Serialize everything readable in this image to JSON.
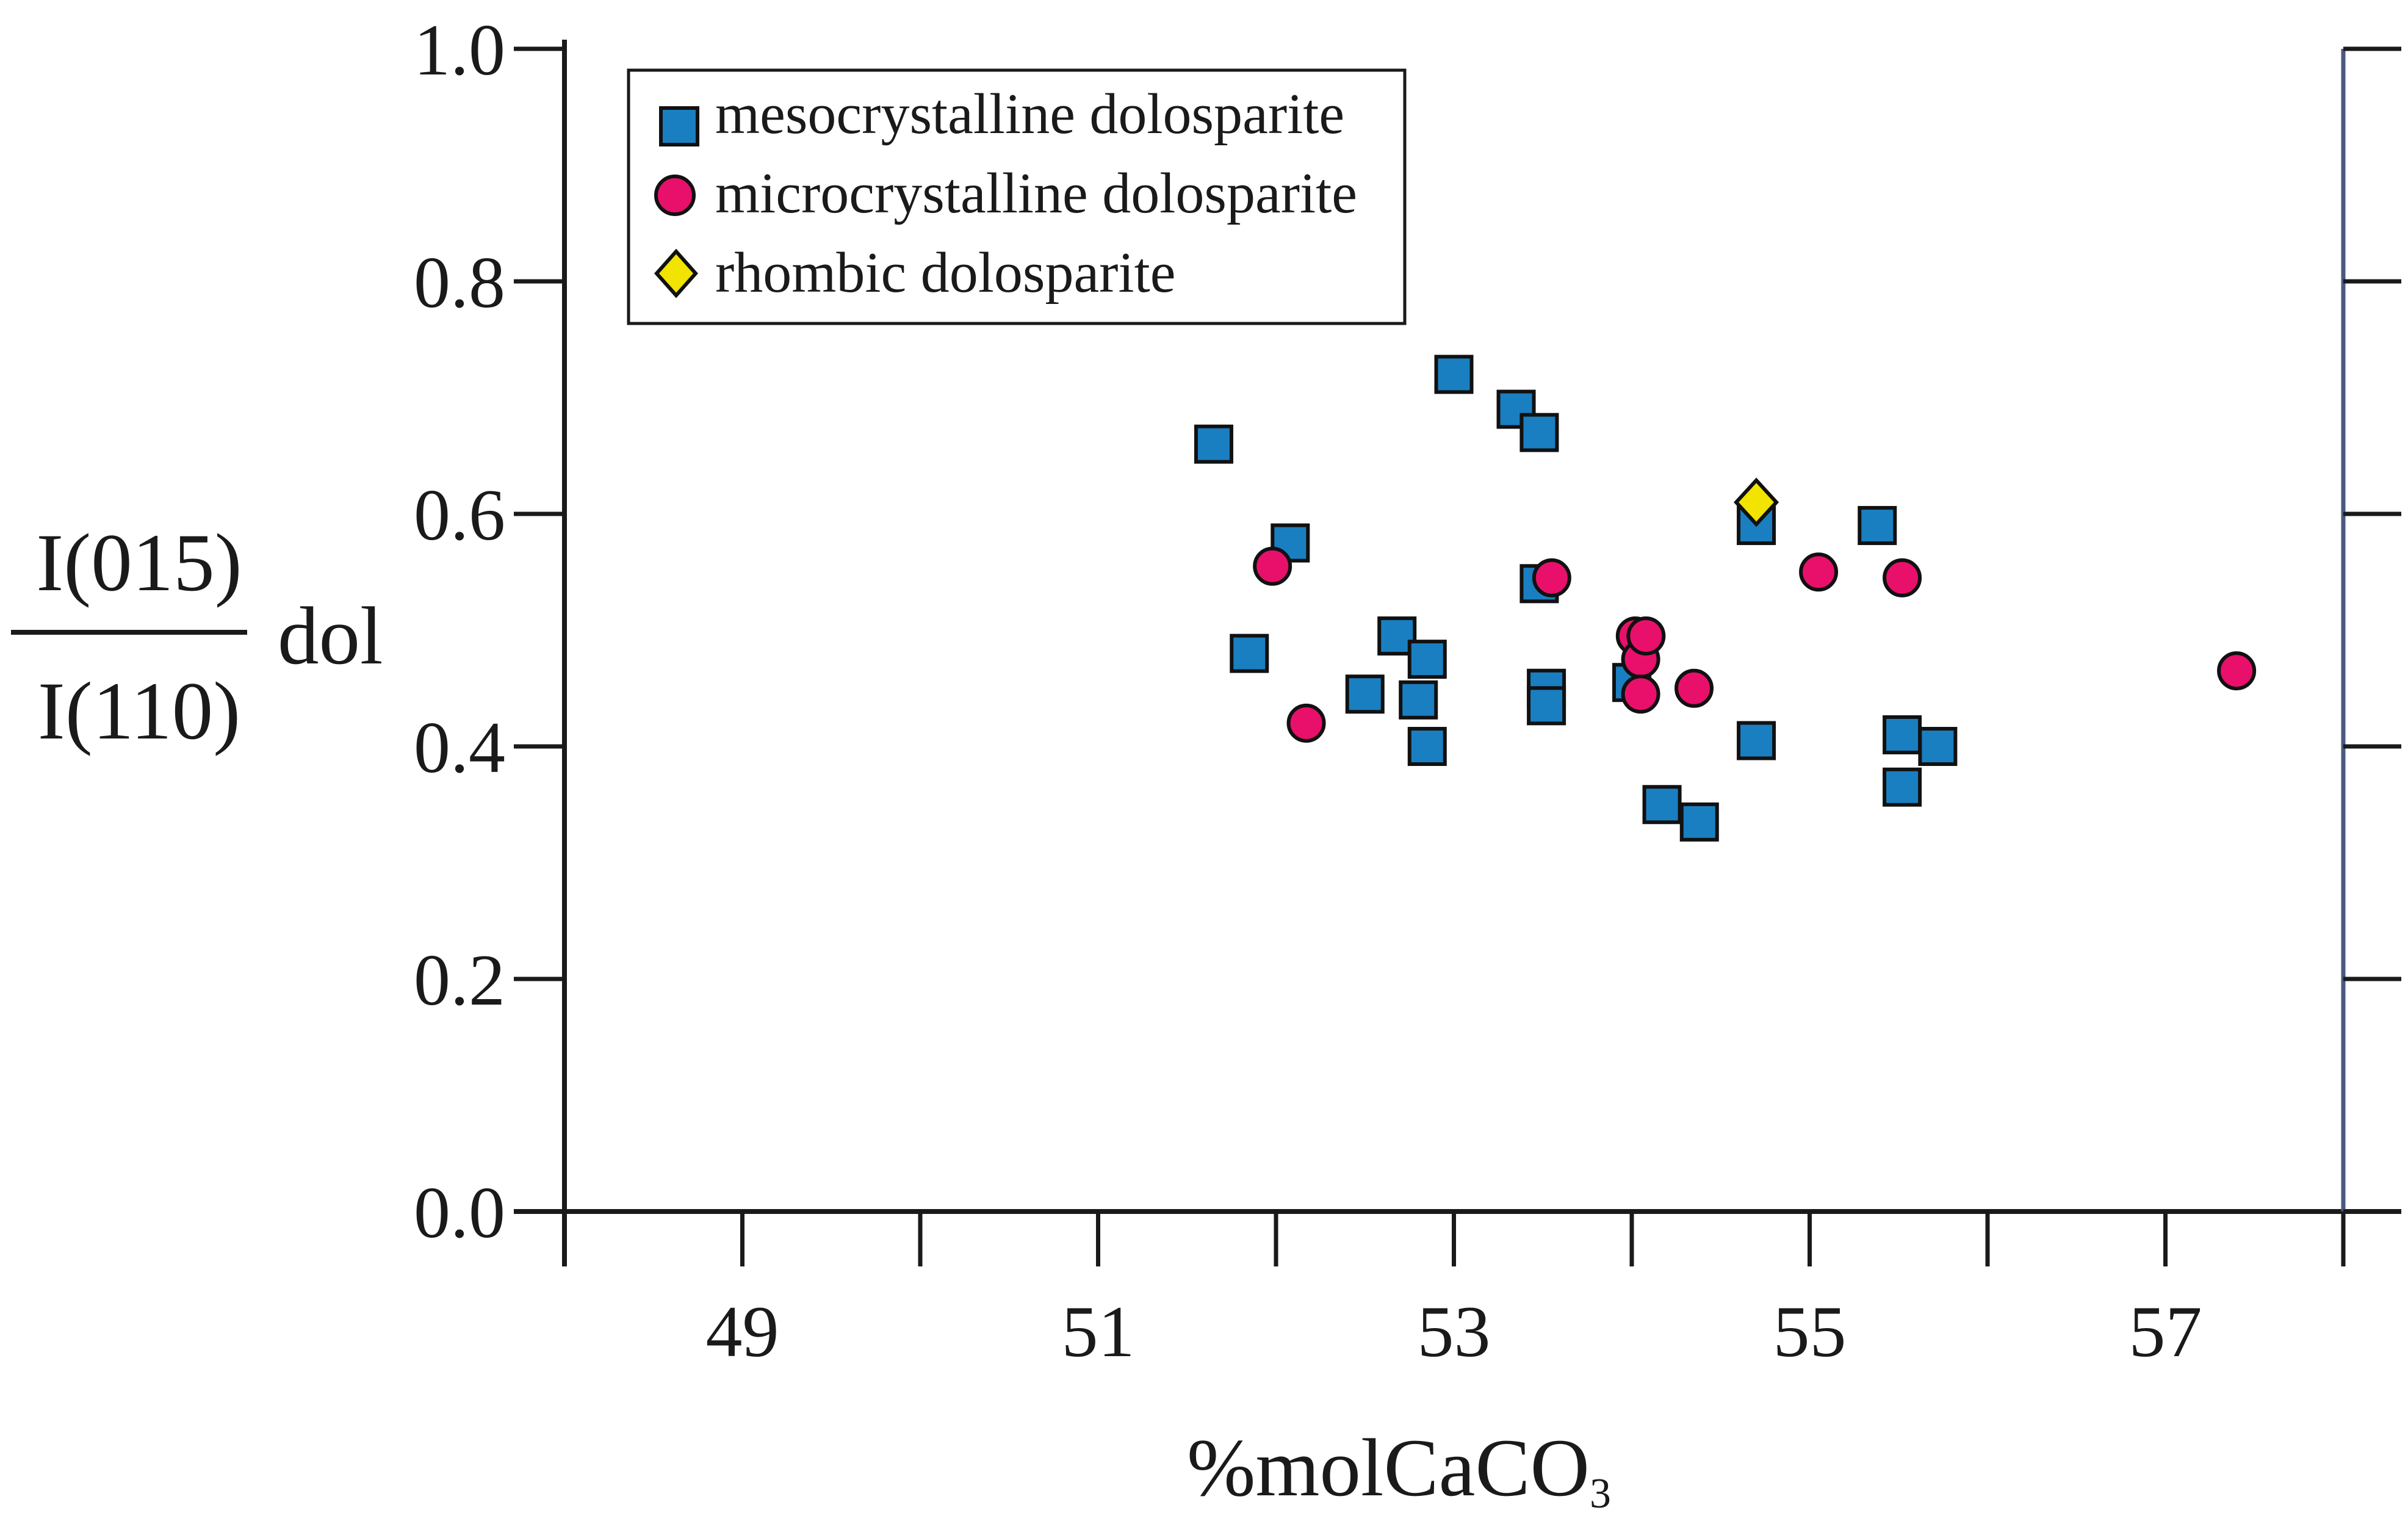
{
  "chart_data": {
    "type": "scatter",
    "xlabel": "%molCaCO",
    "xlabel_subscript": "3",
    "ylabel": {
      "numerator": "I(015)",
      "denominator": "I(110)",
      "suffix": "dol"
    },
    "xlim": [
      48,
      58
    ],
    "ylim": [
      0.0,
      1.0
    ],
    "x_ticks": [
      48,
      49,
      50,
      51,
      52,
      53,
      54,
      55,
      56,
      57,
      58
    ],
    "x_tick_labels": [
      {
        "value": 49,
        "label": "49"
      },
      {
        "value": 51,
        "label": "51"
      },
      {
        "value": 53,
        "label": "53"
      },
      {
        "value": 55,
        "label": "55"
      },
      {
        "value": 57,
        "label": "57"
      }
    ],
    "y_ticks": [
      {
        "value": 0.0,
        "label": "0.0"
      },
      {
        "value": 0.2,
        "label": "0.2"
      },
      {
        "value": 0.4,
        "label": "0.4"
      },
      {
        "value": 0.6,
        "label": "0.6"
      },
      {
        "value": 0.8,
        "label": "0.8"
      },
      {
        "value": 1.0,
        "label": "1.0"
      }
    ],
    "grid": false,
    "legend_position": "top-left",
    "series": [
      {
        "name": "mesocrystalline dolosparite",
        "marker": "square",
        "color": "#1a7fc1",
        "points": [
          {
            "x": 51.65,
            "y": 0.66
          },
          {
            "x": 51.85,
            "y": 0.48
          },
          {
            "x": 52.08,
            "y": 0.575
          },
          {
            "x": 52.5,
            "y": 0.445
          },
          {
            "x": 52.68,
            "y": 0.495
          },
          {
            "x": 52.8,
            "y": 0.44
          },
          {
            "x": 52.85,
            "y": 0.475
          },
          {
            "x": 52.85,
            "y": 0.4
          },
          {
            "x": 53.0,
            "y": 0.72
          },
          {
            "x": 53.35,
            "y": 0.69
          },
          {
            "x": 53.48,
            "y": 0.54
          },
          {
            "x": 53.48,
            "y": 0.67
          },
          {
            "x": 53.52,
            "y": 0.45
          },
          {
            "x": 53.52,
            "y": 0.435
          },
          {
            "x": 54.0,
            "y": 0.455
          },
          {
            "x": 54.17,
            "y": 0.35
          },
          {
            "x": 54.38,
            "y": 0.335
          },
          {
            "x": 54.7,
            "y": 0.59
          },
          {
            "x": 54.7,
            "y": 0.405
          },
          {
            "x": 55.38,
            "y": 0.59
          },
          {
            "x": 55.52,
            "y": 0.41
          },
          {
            "x": 55.52,
            "y": 0.365
          },
          {
            "x": 55.72,
            "y": 0.4
          }
        ]
      },
      {
        "name": "microcrystalline dolosparite",
        "marker": "circle",
        "color": "#e8106b",
        "points": [
          {
            "x": 51.98,
            "y": 0.555
          },
          {
            "x": 52.17,
            "y": 0.42
          },
          {
            "x": 53.55,
            "y": 0.545
          },
          {
            "x": 54.02,
            "y": 0.495
          },
          {
            "x": 54.05,
            "y": 0.475
          },
          {
            "x": 54.08,
            "y": 0.495
          },
          {
            "x": 54.05,
            "y": 0.445
          },
          {
            "x": 54.35,
            "y": 0.45
          },
          {
            "x": 55.05,
            "y": 0.55
          },
          {
            "x": 55.52,
            "y": 0.545
          },
          {
            "x": 57.4,
            "y": 0.465
          }
        ]
      },
      {
        "name": "rhombic dolosparite",
        "marker": "diamond",
        "color": "#f2e300",
        "points": [
          {
            "x": 54.7,
            "y": 0.61
          }
        ]
      }
    ]
  }
}
